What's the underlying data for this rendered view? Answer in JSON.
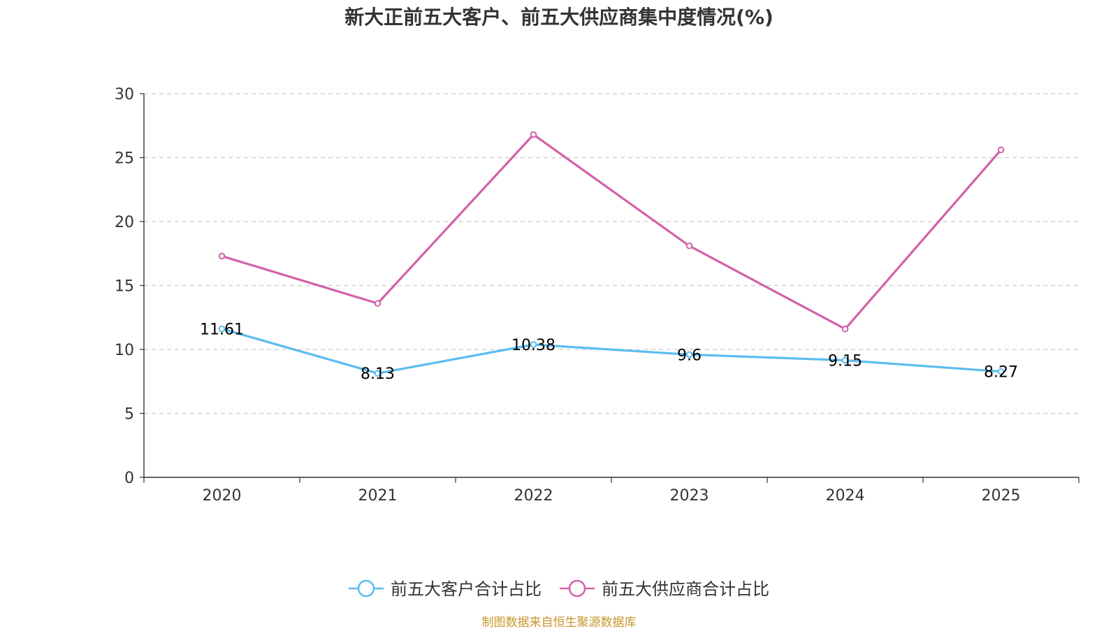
{
  "chart_data": {
    "type": "line",
    "title": "新大正前五大客户、前五大供应商集中度情况(%)",
    "categories": [
      "2020",
      "2021",
      "2022",
      "2023",
      "2024",
      "2025"
    ],
    "ylim": [
      0,
      30
    ],
    "yticks": [
      0,
      5,
      10,
      15,
      20,
      25,
      30
    ],
    "grid": true,
    "legend_position": "bottom-center",
    "series": [
      {
        "name": "前五大客户合计占比",
        "color": "#5bbcf0",
        "values": [
          11.61,
          8.13,
          10.38,
          9.6,
          9.15,
          8.27
        ],
        "labels": [
          "11.61",
          "8.13",
          "10.38",
          "9.6",
          "9.15",
          "8.27"
        ],
        "show_labels": true
      },
      {
        "name": "前五大供应商合计占比",
        "color": "#d262a8",
        "values": [
          17.3,
          13.6,
          26.8,
          18.1,
          11.6,
          25.6
        ],
        "show_labels": false
      }
    ]
  },
  "source": {
    "text": "制图数据来自恒生聚源数据库",
    "color": "#c8952c"
  }
}
